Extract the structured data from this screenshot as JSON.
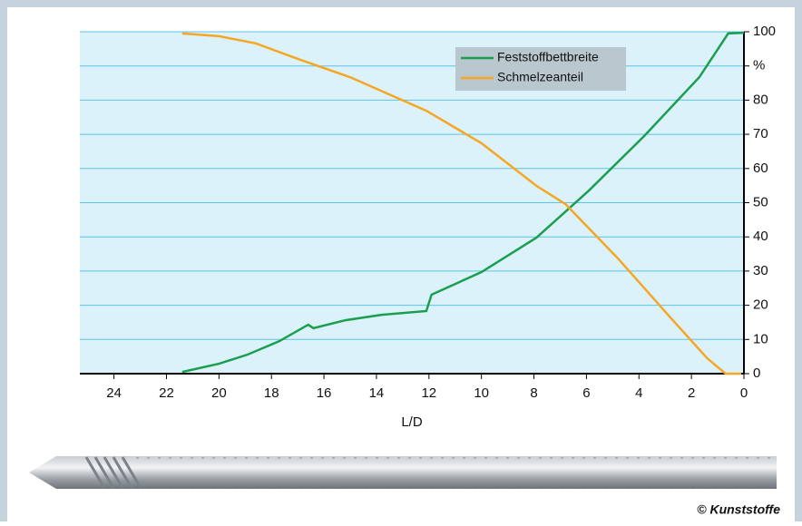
{
  "chart_data": {
    "type": "line",
    "x_label": "L/D",
    "xlim": [
      25.3,
      0
    ],
    "xticks": [
      24,
      22,
      20,
      18,
      16,
      14,
      12,
      10,
      8,
      6,
      4,
      2,
      0
    ],
    "ylim": [
      0,
      100
    ],
    "yticks": [
      0,
      10,
      20,
      30,
      40,
      50,
      60,
      70,
      80,
      {
        "value": 90,
        "label": "%"
      },
      100
    ],
    "grid": true,
    "legend": "upper right",
    "series": [
      {
        "name": "Feststoffbettbreite",
        "color": "#1a9e4f",
        "x": [
          21.4,
          20.0,
          18.9,
          17.7,
          16.6,
          16.4,
          15.2,
          13.8,
          12.1,
          11.9,
          10.0,
          7.9,
          5.9,
          3.8,
          1.7,
          0.6,
          0.0
        ],
        "values": [
          0.5,
          2.9,
          5.6,
          9.5,
          14.3,
          13.3,
          15.6,
          17.2,
          18.3,
          23.1,
          29.7,
          39.8,
          53.6,
          69.5,
          86.7,
          99.5,
          99.7
        ]
      },
      {
        "name": "Schmelzeanteil",
        "color": "#f5a623",
        "x": [
          21.4,
          20.0,
          18.6,
          16.9,
          15.0,
          12.1,
          10.0,
          7.9,
          6.8,
          4.8,
          2.8,
          1.4,
          0.7,
          0.1
        ],
        "values": [
          99.5,
          98.7,
          96.6,
          91.8,
          86.7,
          76.9,
          67.4,
          54.9,
          49.6,
          33.7,
          16.4,
          4.5,
          0,
          0
        ]
      }
    ]
  },
  "credit": "© Kunststoffe"
}
